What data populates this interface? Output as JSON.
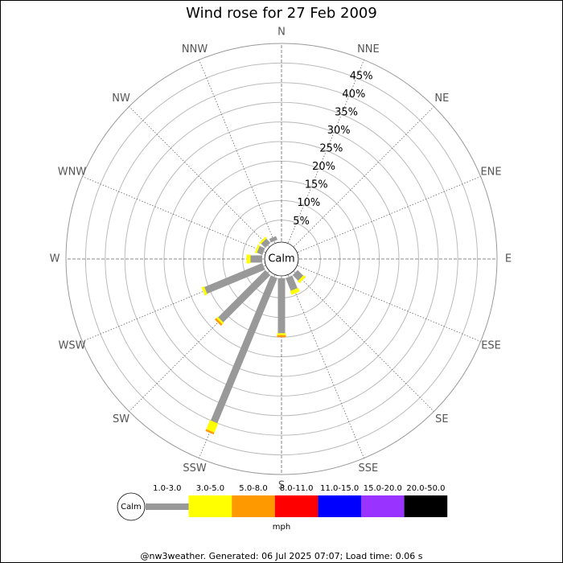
{
  "chart_data": {
    "type": "windrose",
    "title": "Wind rose for 27 Feb 2009",
    "directions": [
      "N",
      "NNE",
      "NE",
      "ENE",
      "E",
      "ESE",
      "SE",
      "SSE",
      "S",
      "SSW",
      "SW",
      "WSW",
      "W",
      "WNW",
      "NW",
      "NNW"
    ],
    "series": [
      {
        "name": "1.0-3.0",
        "color": "#999999",
        "values": [
          0,
          0,
          0,
          0,
          0,
          0,
          2,
          3.5,
          14,
          40,
          17,
          16,
          3,
          1.5,
          1.5,
          1
        ]
      },
      {
        "name": "3.0-5.0",
        "color": "#ffff00",
        "values": [
          0,
          0,
          0,
          0,
          0,
          0,
          0.7,
          1,
          0.5,
          2.5,
          0.5,
          0.7,
          1,
          0.5,
          0.5,
          0
        ]
      },
      {
        "name": "5.0-8.0",
        "color": "#ff9900",
        "values": [
          0,
          0,
          0,
          0,
          0,
          0,
          0,
          0,
          0.5,
          0.5,
          0.5,
          0,
          0,
          0,
          0,
          0
        ]
      },
      {
        "name": "8.0-11.0",
        "color": "#ff0000",
        "values": [
          0,
          0,
          0,
          0,
          0,
          0,
          0,
          0,
          0,
          0,
          0,
          0,
          0,
          0,
          0,
          0
        ]
      },
      {
        "name": "11.0-15.0",
        "color": "#0000ff",
        "values": [
          0,
          0,
          0,
          0,
          0,
          0,
          0,
          0,
          0,
          0,
          0,
          0,
          0,
          0,
          0,
          0
        ]
      },
      {
        "name": "15.0-20.0",
        "color": "#9933ff",
        "values": [
          0,
          0,
          0,
          0,
          0,
          0,
          0,
          0,
          0,
          0,
          0,
          0,
          0,
          0,
          0,
          0
        ]
      },
      {
        "name": "20.0-50.0",
        "color": "#000000",
        "values": [
          0,
          0,
          0,
          0,
          0,
          0,
          0,
          0,
          0,
          0,
          0,
          0,
          0,
          0,
          0,
          0
        ]
      }
    ],
    "rlim": [
      0,
      50
    ],
    "rticks": [
      {
        "value": 5,
        "label": "5%"
      },
      {
        "value": 10,
        "label": "10%"
      },
      {
        "value": 15,
        "label": "15%"
      },
      {
        "value": 20,
        "label": "20%"
      },
      {
        "value": 25,
        "label": "25%"
      },
      {
        "value": 30,
        "label": "30%"
      },
      {
        "value": 35,
        "label": "35%"
      },
      {
        "value": 40,
        "label": "40%"
      },
      {
        "value": 45,
        "label": "45%"
      }
    ],
    "calm_label": "Calm",
    "unit": "mph",
    "footer": "@nw3weather. Generated: 06 Jul 2025 07:07; Load time: 0.06 s"
  }
}
